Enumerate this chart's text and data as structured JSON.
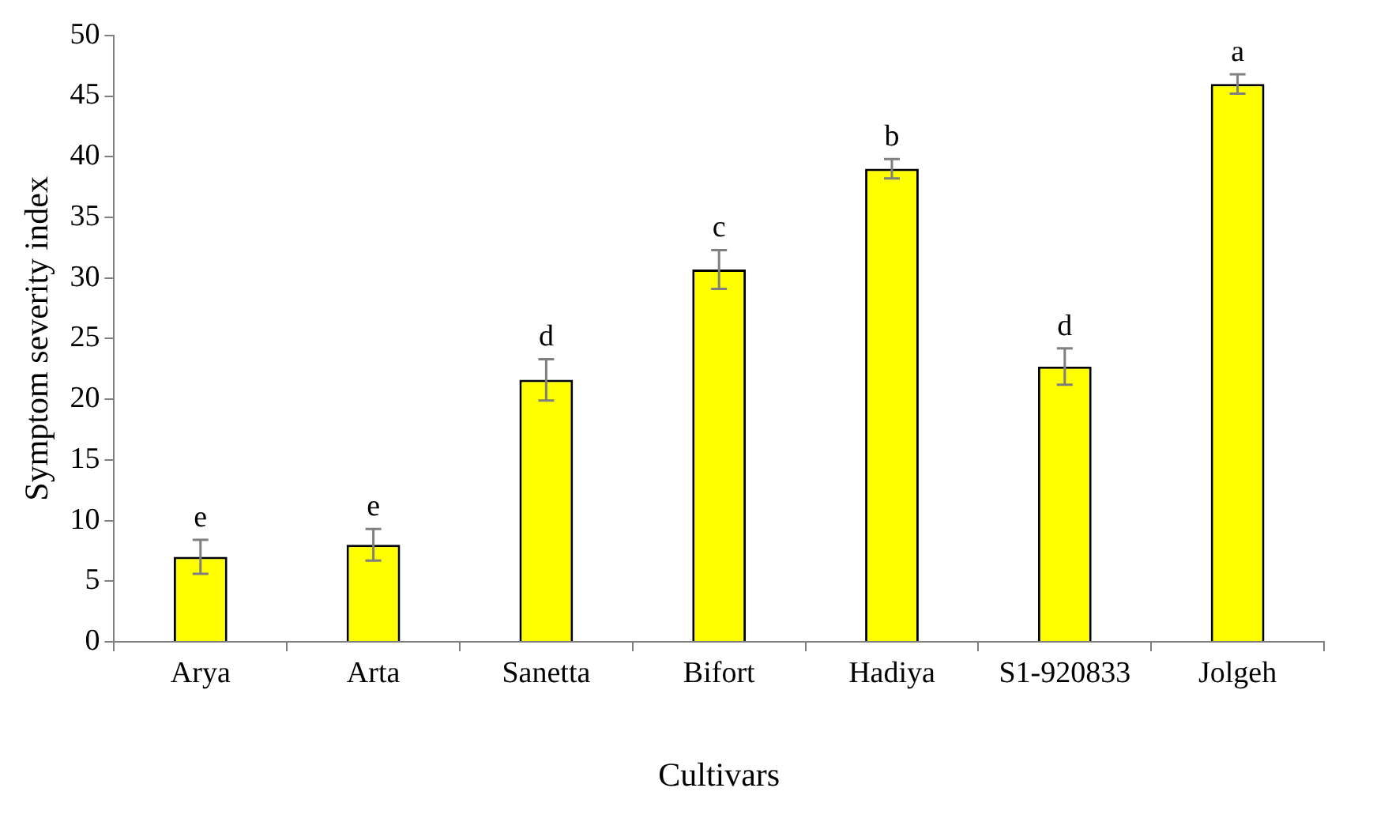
{
  "chart_data": {
    "type": "bar",
    "xlabel": "Cultivars",
    "ylabel": "Symptom severity index",
    "categories": [
      "Arya",
      "Arta",
      "Sanetta",
      "Bifort",
      "Hadiya",
      "S1-920833",
      "Jolgeh"
    ],
    "values": [
      7,
      8,
      21.6,
      30.7,
      39,
      22.7,
      46
    ],
    "errors": [
      1.4,
      1.3,
      1.7,
      1.6,
      0.8,
      1.5,
      0.8
    ],
    "color": "#ffff00",
    "ylim": [
      0,
      50
    ],
    "yticks": [
      0,
      5,
      10,
      15,
      20,
      25,
      30,
      35,
      40,
      45,
      50
    ],
    "grid": false,
    "legend": false,
    "annotations": [
      {
        "text": "e",
        "x": "Arya",
        "y": 8.4
      },
      {
        "text": "e",
        "x": "Arta",
        "y": 9.3
      },
      {
        "text": "d",
        "x": "Sanetta",
        "y": 23.3
      },
      {
        "text": "c",
        "x": "Bifort",
        "y": 32.3
      },
      {
        "text": "b",
        "x": "Hadiya",
        "y": 39.8
      },
      {
        "text": "d",
        "x": "S1-920833",
        "y": 24.2
      },
      {
        "text": "a",
        "x": "Jolgeh",
        "y": 46.8
      }
    ]
  }
}
